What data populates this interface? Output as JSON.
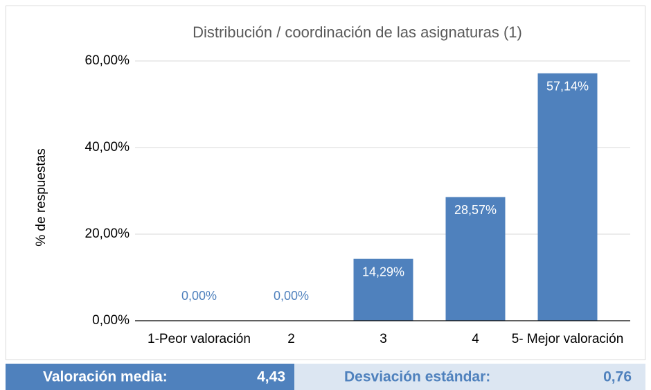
{
  "chart_data": {
    "type": "bar",
    "title": "Distribución / coordinación de las asignaturas (1)",
    "y_label": "% de respuestas",
    "categories": [
      "1-Peor valoración",
      "2",
      "3",
      "4",
      "5- Mejor valoración"
    ],
    "values": [
      0,
      0,
      14.29,
      28.57,
      57.14
    ],
    "value_labels": [
      "0,00%",
      "0,00%",
      "14,29%",
      "28,57%",
      "57,14%"
    ],
    "color": "#4f81bd",
    "ylim": [
      0,
      60
    ],
    "yticks": [
      {
        "value": 0,
        "label": "0,00%"
      },
      {
        "value": 20,
        "label": "20,00%"
      },
      {
        "value": 40,
        "label": "40,00%"
      },
      {
        "value": 60,
        "label": "60,00%"
      }
    ],
    "grid": true
  },
  "summary": {
    "mean_label": "Valoración media:",
    "mean_value": "4,43",
    "sd_label": "Desviación estándar:",
    "sd_value": "0,76"
  }
}
